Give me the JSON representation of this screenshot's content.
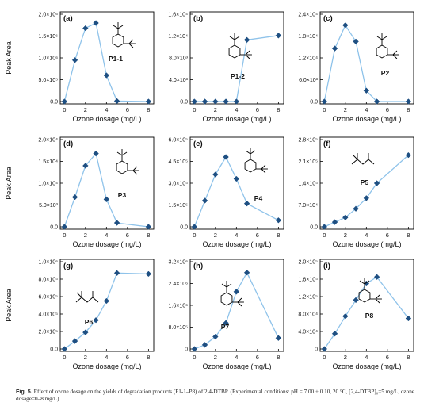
{
  "ylabel": "Peak Area",
  "xlabel": "Ozone dosage (mg/L)",
  "caption": {
    "label": "Fig. 5.",
    "text": "Effect of ozone dosage on the yields of degradation products (P1-1–P8) of 2,4-DTBP. (Experimental conditions: pH = 7.00 ± 0.10, 20 °C, [2,4-DTBP]₀=5 mg/L, ozone dosage=0–8 mg/L)."
  },
  "colors": {
    "line": "#8fc3ea",
    "marker": "#1e4f82",
    "axis": "#000000"
  },
  "chart_data": [
    {
      "panel": "(a)",
      "compound": "P1-1",
      "type": "line",
      "ylim": [
        0,
        2000000
      ],
      "yticks": [
        "0.0",
        "5.0×10⁵",
        "1.0×10⁶",
        "1.5×10⁶",
        "2.0×10⁶"
      ],
      "x": [
        0,
        1,
        2,
        3,
        4,
        5,
        8
      ],
      "values": [
        0,
        950000,
        1680000,
        1800000,
        600000,
        10000,
        0
      ]
    },
    {
      "panel": "(b)",
      "compound": "P1-2",
      "type": "line",
      "ylim": [
        0,
        16000
      ],
      "yticks": [
        "0.0",
        "4.0×10³",
        "8.0×10³",
        "1.2×10⁴",
        "1.6×10⁴"
      ],
      "x": [
        0,
        1,
        2,
        3,
        4,
        5,
        8
      ],
      "values": [
        0,
        0,
        0,
        0,
        0,
        11300,
        12100
      ]
    },
    {
      "panel": "(c)",
      "compound": "P2",
      "type": "line",
      "ylim": [
        0,
        24000
      ],
      "yticks": [
        "0.0",
        "6.0×10³",
        "1.2×10⁴",
        "1.8×10⁴",
        "2.4×10⁴"
      ],
      "x": [
        0,
        1,
        2,
        3,
        4,
        5,
        8
      ],
      "values": [
        0,
        14600,
        21000,
        16500,
        3000,
        0,
        0
      ]
    },
    {
      "panel": "(d)",
      "compound": "P3",
      "type": "line",
      "ylim": [
        0,
        20000
      ],
      "yticks": [
        "0.0",
        "5.0×10³",
        "1.0×10⁴",
        "1.5×10⁴",
        "2.0×10⁴"
      ],
      "x": [
        0,
        1,
        2,
        3,
        4,
        5,
        8
      ],
      "values": [
        0,
        6800,
        14000,
        16800,
        6300,
        900,
        0
      ]
    },
    {
      "panel": "(e)",
      "compound": "P4",
      "type": "line",
      "ylim": [
        0,
        600000
      ],
      "yticks": [
        "0.0",
        "1.5×10⁵",
        "3.0×10⁵",
        "4.5×10⁵",
        "6.0×10⁵"
      ],
      "x": [
        0,
        1,
        2,
        3,
        4,
        5,
        8
      ],
      "values": [
        0,
        180000,
        360000,
        480000,
        330000,
        160000,
        45000
      ]
    },
    {
      "panel": "(f)",
      "compound": "P5",
      "type": "line",
      "ylim": [
        0,
        280000
      ],
      "yticks": [
        "0.0",
        "7.0×10⁴",
        "1.4×10⁵",
        "2.1×10⁵",
        "2.8×10⁵"
      ],
      "x": [
        0,
        1,
        2,
        3,
        4,
        5,
        8
      ],
      "values": [
        0,
        15000,
        30000,
        58000,
        92000,
        140000,
        230000
      ]
    },
    {
      "panel": "(g)",
      "compound": "P6",
      "type": "line",
      "ylim": [
        0,
        1000000
      ],
      "yticks": [
        "0.0",
        "2.0×10⁵",
        "4.0×10⁵",
        "6.0×10⁵",
        "8.0×10⁵",
        "1.0×10⁶"
      ],
      "x": [
        0,
        1,
        2,
        3,
        4,
        5,
        8
      ],
      "values": [
        0,
        90000,
        190000,
        330000,
        550000,
        870000,
        860000
      ]
    },
    {
      "panel": "(h)",
      "compound": "P7",
      "type": "line",
      "ylim": [
        0,
        3200000
      ],
      "yticks": [
        "0",
        "8.0×10⁵",
        "1.6×10⁶",
        "2.4×10⁶",
        "3.2×10⁶"
      ],
      "x": [
        0,
        1,
        2,
        3,
        4,
        5,
        8
      ],
      "values": [
        0,
        150000,
        450000,
        950000,
        2100000,
        2800000,
        400000
      ]
    },
    {
      "panel": "(i)",
      "compound": "P8",
      "type": "line",
      "ylim": [
        0,
        200000
      ],
      "yticks": [
        "0",
        "4.0×10⁴",
        "8.0×10⁴",
        "1.2×10⁵",
        "1.6×10⁵",
        "2.0×10⁵"
      ],
      "x": [
        0,
        1,
        2,
        3,
        4,
        5,
        8
      ],
      "values": [
        0,
        35000,
        75000,
        112000,
        150000,
        165000,
        70000
      ]
    }
  ],
  "shared_x": {
    "ticks": [
      0,
      2,
      4,
      6,
      8
    ],
    "xlim": [
      -0.4,
      8.5
    ]
  }
}
